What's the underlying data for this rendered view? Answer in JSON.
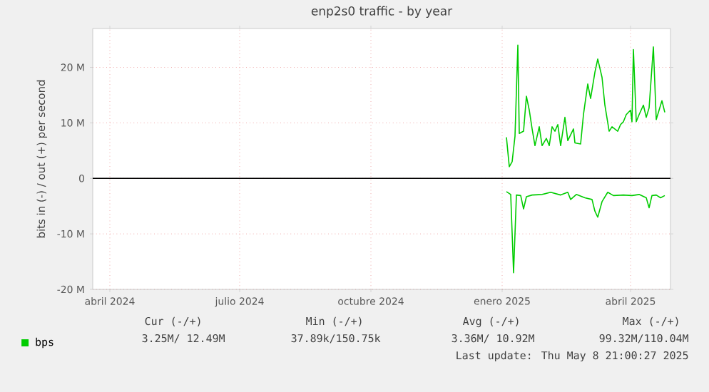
{
  "chart_data": {
    "type": "line",
    "title": "enp2s0 traffic - by year",
    "ylabel": "bits in (-) / out (+) per second",
    "xlim": [
      "2024-03-20",
      "2025-04-29"
    ],
    "xticks": [
      {
        "value": "2024-04-01",
        "label": "abril 2024"
      },
      {
        "value": "2024-07-01",
        "label": "julio 2024"
      },
      {
        "value": "2024-10-01",
        "label": "octubre 2024"
      },
      {
        "value": "2025-01-01",
        "label": "enero 2025"
      },
      {
        "value": "2025-04-01",
        "label": "abril 2025"
      }
    ],
    "ylim": [
      -20,
      27
    ],
    "yticks": [
      {
        "value": -20,
        "label": "-20 M"
      },
      {
        "value": -10,
        "label": "-10 M"
      },
      {
        "value": 0,
        "label": "0"
      },
      {
        "value": 10,
        "label": "10 M"
      },
      {
        "value": 20,
        "label": "20 M"
      }
    ],
    "grid": true,
    "legend": "bottom",
    "ref_lines": [
      {
        "axis": "y",
        "value": 0,
        "color": "#000000"
      }
    ],
    "series": [
      {
        "name": "bps",
        "color": "#00cc00",
        "x": [
          "2025-01-04",
          "2025-01-06",
          "2025-01-08",
          "2025-01-10",
          "2025-01-12",
          "2025-01-13",
          "2025-01-16",
          "2025-01-18",
          "2025-01-20",
          "2025-01-22",
          "2025-01-24",
          "2025-01-27",
          "2025-01-29",
          "2025-02-01",
          "2025-02-03",
          "2025-02-05",
          "2025-02-07",
          "2025-02-09",
          "2025-02-11",
          "2025-02-14",
          "2025-02-16",
          "2025-02-20",
          "2025-02-21",
          "2025-02-25",
          "2025-02-27",
          "2025-03-02",
          "2025-03-04",
          "2025-03-07",
          "2025-03-09",
          "2025-03-12",
          "2025-03-14",
          "2025-03-17",
          "2025-03-19",
          "2025-03-23",
          "2025-03-25",
          "2025-03-27",
          "2025-03-29",
          "2025-04-01",
          "2025-04-02",
          "2025-04-03",
          "2025-04-05",
          "2025-04-07",
          "2025-04-10",
          "2025-04-12",
          "2025-04-14",
          "2025-04-17",
          "2025-04-19",
          "2025-04-21",
          "2025-04-23",
          "2025-04-25"
        ],
        "values": [
          7.4,
          2.1,
          3.0,
          7.6,
          24.0,
          8.1,
          8.5,
          14.8,
          12.3,
          8.9,
          5.9,
          9.3,
          5.9,
          7.2,
          5.9,
          9.3,
          8.5,
          9.7,
          5.9,
          11.0,
          6.8,
          8.9,
          6.4,
          6.2,
          11.5,
          17.0,
          14.4,
          19.1,
          21.5,
          18.2,
          13.2,
          8.5,
          9.3,
          8.5,
          9.7,
          10.2,
          11.5,
          12.3,
          10.2,
          23.2,
          10.2,
          11.5,
          13.2,
          11.0,
          12.7,
          23.7,
          10.6,
          12.3,
          14.0,
          11.9
        ]
      },
      {
        "color": "#00cc00",
        "x": [
          "2025-01-04",
          "2025-01-07",
          "2025-01-09",
          "2025-01-11",
          "2025-01-14",
          "2025-01-16",
          "2025-01-18",
          "2025-01-22",
          "2025-01-29",
          "2025-02-04",
          "2025-02-11",
          "2025-02-16",
          "2025-02-18",
          "2025-02-22",
          "2025-02-28",
          "2025-03-05",
          "2025-03-07",
          "2025-03-09",
          "2025-03-12",
          "2025-03-16",
          "2025-03-20",
          "2025-03-27",
          "2025-04-02",
          "2025-04-07",
          "2025-04-12",
          "2025-04-14",
          "2025-04-16",
          "2025-04-19",
          "2025-04-22",
          "2025-04-25"
        ],
        "values": [
          -2.4,
          -2.9,
          -17.0,
          -3.0,
          -3.1,
          -5.5,
          -3.3,
          -3.0,
          -2.9,
          -2.5,
          -3.0,
          -2.5,
          -3.8,
          -2.9,
          -3.5,
          -3.8,
          -5.9,
          -7.0,
          -4.2,
          -2.5,
          -3.1,
          -3.0,
          -3.1,
          -2.9,
          -3.5,
          -5.3,
          -3.1,
          -3.0,
          -3.5,
          -3.1
        ]
      }
    ],
    "annotations": [
      "Cur (-/+)",
      "Min (-/+)",
      "Avg (-/+)",
      "Max (-/+)",
      "3.25M/ 12.49M",
      "37.89k/150.75k",
      "3.36M/ 10.92M",
      "99.32M/110.04M",
      "Last update: Thu May 8 21:00:27 2025"
    ]
  }
}
